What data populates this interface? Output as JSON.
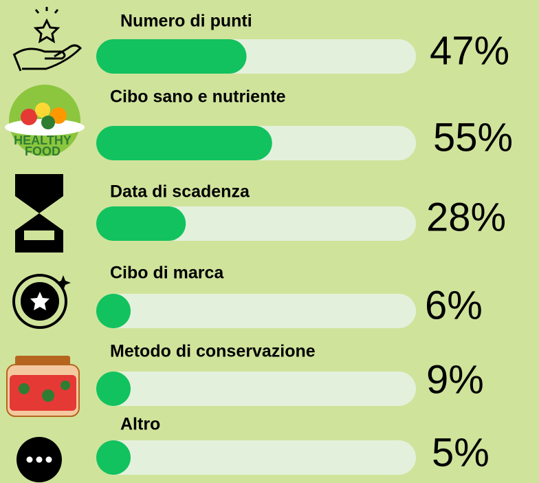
{
  "chart_data": {
    "type": "bar",
    "categories": [
      "Numero di punti",
      "Cibo sano e nutriente",
      "Data di scadenza",
      "Cibo di marca",
      "Metodo di conservazione",
      "Altro"
    ],
    "values": [
      47,
      55,
      28,
      6,
      9,
      5
    ],
    "value_labels": [
      "47%",
      "55%",
      "28%",
      "6%",
      "9%",
      "5%"
    ],
    "color": "#12c25e",
    "xlim": [
      0,
      100
    ]
  }
}
